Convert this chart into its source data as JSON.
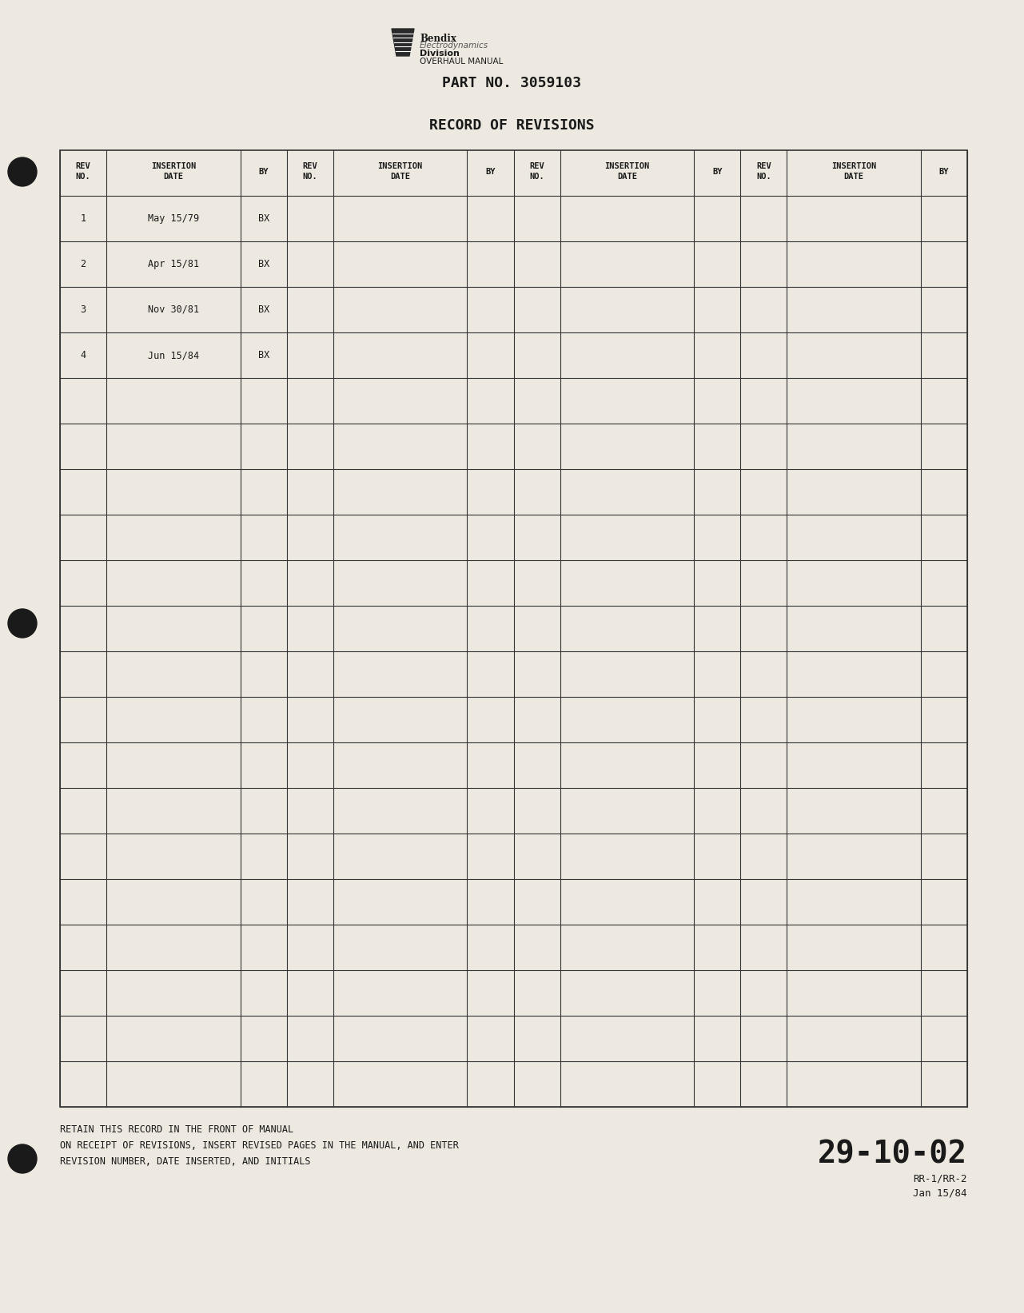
{
  "page_color": "#ede9e0",
  "title_part_no": "PART NO. 3059103",
  "title_record": "RECORD OF REVISIONS",
  "header_line1": [
    "REV\nNO.",
    "INSERTION\nDATE",
    "BY",
    "REV\nNO.",
    "INSERTION\nDATE",
    "BY",
    "REV\nNO.",
    "INSERTION\nDATE",
    "BY",
    "REV\nNO.",
    "INSERTION\nDATE",
    "BY"
  ],
  "data_rows": [
    [
      "1",
      "May 15/79",
      "BX",
      "",
      "",
      "",
      "",
      "",
      "",
      "",
      "",
      ""
    ],
    [
      "2",
      "Apr 15/81",
      "BX",
      "",
      "",
      "",
      "",
      "",
      "",
      "",
      "",
      ""
    ],
    [
      "3",
      "Nov 30/81",
      "BX",
      "",
      "",
      "",
      "",
      "",
      "",
      "",
      "",
      ""
    ],
    [
      "4",
      "Jun 15/84",
      "BX",
      "",
      "",
      "",
      "",
      "",
      "",
      "",
      "",
      ""
    ],
    [
      "",
      "",
      "",
      "",
      "",
      "",
      "",
      "",
      "",
      "",
      "",
      ""
    ],
    [
      "",
      "",
      "",
      "",
      "",
      "",
      "",
      "",
      "",
      "",
      "",
      ""
    ],
    [
      "",
      "",
      "",
      "",
      "",
      "",
      "",
      "",
      "",
      "",
      "",
      ""
    ],
    [
      "",
      "",
      "",
      "",
      "",
      "",
      "",
      "",
      "",
      "",
      "",
      ""
    ],
    [
      "",
      "",
      "",
      "",
      "",
      "",
      "",
      "",
      "",
      "",
      "",
      ""
    ],
    [
      "",
      "",
      "",
      "",
      "",
      "",
      "",
      "",
      "",
      "",
      "",
      ""
    ],
    [
      "",
      "",
      "",
      "",
      "",
      "",
      "",
      "",
      "",
      "",
      "",
      ""
    ],
    [
      "",
      "",
      "",
      "",
      "",
      "",
      "",
      "",
      "",
      "",
      "",
      ""
    ],
    [
      "",
      "",
      "",
      "",
      "",
      "",
      "",
      "",
      "",
      "",
      "",
      ""
    ],
    [
      "",
      "",
      "",
      "",
      "",
      "",
      "",
      "",
      "",
      "",
      "",
      ""
    ],
    [
      "",
      "",
      "",
      "",
      "",
      "",
      "",
      "",
      "",
      "",
      "",
      ""
    ],
    [
      "",
      "",
      "",
      "",
      "",
      "",
      "",
      "",
      "",
      "",
      "",
      ""
    ],
    [
      "",
      "",
      "",
      "",
      "",
      "",
      "",
      "",
      "",
      "",
      "",
      ""
    ],
    [
      "",
      "",
      "",
      "",
      "",
      "",
      "",
      "",
      "",
      "",
      "",
      ""
    ],
    [
      "",
      "",
      "",
      "",
      "",
      "",
      "",
      "",
      "",
      "",
      "",
      ""
    ],
    [
      "",
      "",
      "",
      "",
      "",
      "",
      "",
      "",
      "",
      "",
      "",
      ""
    ]
  ],
  "footer_line1": "RETAIN THIS RECORD IN THE FRONT OF MANUAL",
  "footer_line2": "ON RECEIPT OF REVISIONS, INSERT REVISED PAGES IN THE MANUAL, AND ENTER",
  "footer_line3": "REVISION NUMBER, DATE INSERTED, AND INITIALS",
  "page_code": "29-10-02",
  "page_sub1": "RR-1/RR-2",
  "page_sub2": "Jan 15/84",
  "text_color": "#1a1a1a",
  "line_color": "#333333",
  "logo_text1": "Bendix",
  "logo_text2": "Electrodynamics",
  "logo_text3": "Division",
  "logo_text4": "OVERHAUL MANUAL"
}
